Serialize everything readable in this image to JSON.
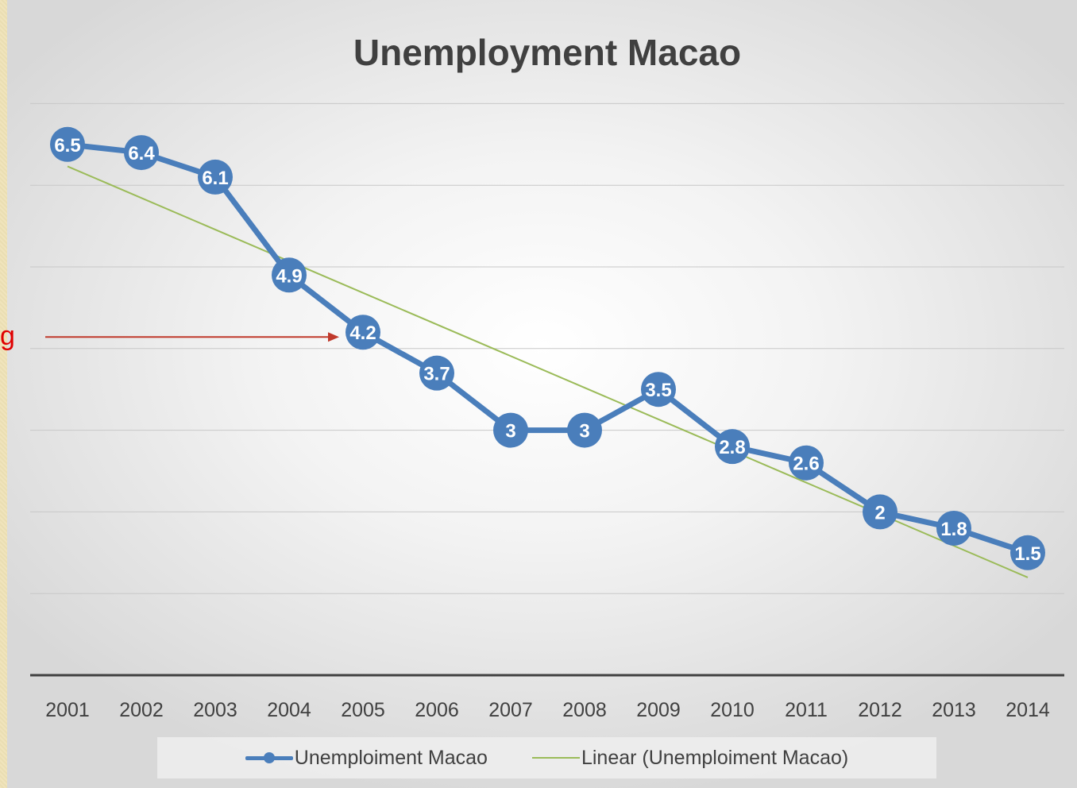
{
  "chart_data": {
    "type": "line",
    "title": "Unemployment Macao",
    "categories": [
      "2001",
      "2002",
      "2003",
      "2004",
      "2005",
      "2006",
      "2007",
      "2008",
      "2009",
      "2010",
      "2011",
      "2012",
      "2013",
      "2014"
    ],
    "series": [
      {
        "name": "Unemploiment Macao",
        "values": [
          6.5,
          6.4,
          6.1,
          4.9,
          4.2,
          3.7,
          3,
          3,
          3.5,
          2.8,
          2.6,
          2,
          1.8,
          1.5
        ],
        "labels": [
          "6.5",
          "6.4",
          "6.1",
          "4.9",
          "4.2",
          "3.7",
          "3",
          "3",
          "3.5",
          "2.8",
          "2.6",
          "2",
          "1.8",
          "1.5"
        ],
        "color": "#4a7ebb"
      }
    ],
    "trendline": {
      "name": "Linear (Unemploiment Macao)",
      "type": "linear",
      "color": "#9bbb59"
    },
    "ylim": [
      0,
      7
    ],
    "y_gridlines": [
      1,
      2,
      3,
      4,
      5,
      6,
      7
    ],
    "grid": true,
    "legend_position": "bottom",
    "annotation": {
      "text": "g",
      "arrow_color": "#c0392b",
      "points_to": "2005"
    }
  }
}
